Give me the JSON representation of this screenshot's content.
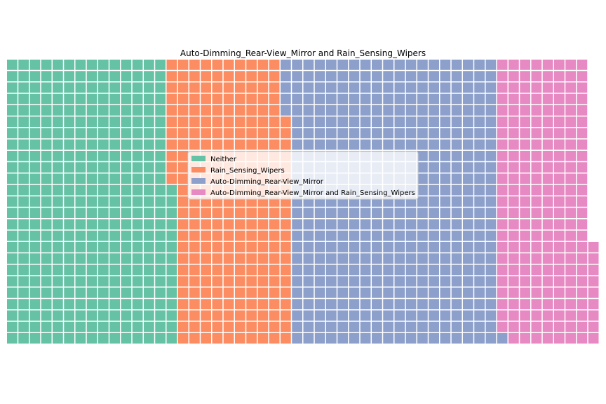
{
  "chart_data": {
    "type": "waffle",
    "title": "Auto-Dimming_Rear-View_Mirror and Rain_Sensing_Wipers",
    "grid": {
      "rows": 25,
      "columns": 52
    },
    "fill_order": "column-major, bottom-to-top",
    "legend_placement": "center",
    "series": [
      {
        "name": "Neither",
        "value": 364,
        "color": "#66c2a5"
      },
      {
        "name": "Rain_Sensing_Wipers",
        "value": 256,
        "color": "#fc8d62"
      },
      {
        "name": "Auto-Dimming_Rear-View_Mirror",
        "value": 456,
        "color": "#8da0cb"
      },
      {
        "name": "Auto-Dimming_Rear-View_Mirror and Rain_Sensing_Wipers",
        "value": 208,
        "color": "#e78ac3"
      }
    ]
  }
}
